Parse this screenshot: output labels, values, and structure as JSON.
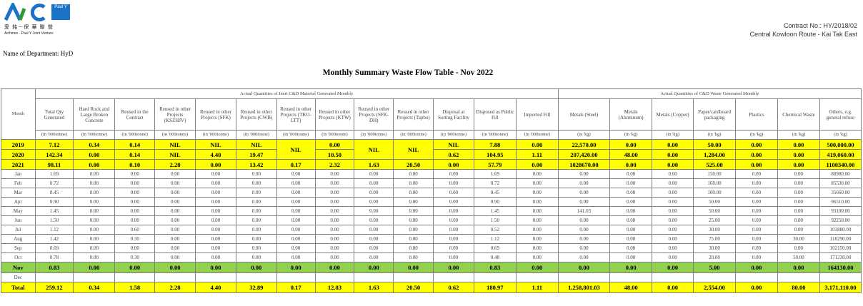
{
  "company": {
    "logo_text": "AIC",
    "partner_logo_text": "Paul Y",
    "cn_name": "愛 銘－保 華 聯 營",
    "en_name": "Aichmex - Paul Y Joint Venture"
  },
  "contract": {
    "number": "Contract No.: HY/2018/02",
    "project": "Central Kowloon Route - Kai Tak East"
  },
  "department": "Name of Department: HyD",
  "title": "Monthly Summary Waste Flow Table - Nov 2022",
  "table": {
    "group_inert": "Actual Quantities of Inert C&D Material Generated Monthly",
    "group_cd": "Actual Quantities of C&D Waste Generated Monthly",
    "month_header": "Month",
    "columns": [
      "Total Qty Generated",
      "Hard Rock and Large Broken Concrete",
      "Reused in the Contract",
      "Reused in other Projects (KSZHJV)",
      "Reused in other Projects (SFK)",
      "Reused in other Projects (CWB)",
      "Reused in other Projects (TKO-LTT)",
      "Reused in other Projects (KTW)",
      "Reused in other Projects (SFK-DH)",
      "Reused in other Projects (Tapbo)",
      "Disposal at Sorting Facility",
      "Disposed as Public Fill",
      "Imported Fill",
      "Metals (Steel)",
      "Metals (Aluminum)",
      "Metals (Copper)",
      "Paper/cardboard packaging",
      "Plastics",
      "Chemical Waste",
      "Others, e.g. general refuse"
    ],
    "units": [
      "(in '000tonne)",
      "(in '000tonne)",
      "(in '000tonne)",
      "(in '000tonne)",
      "(in '000tonne)",
      "(in '000tonne)",
      "(in '000tonne)",
      "(in '000tonne)",
      "(in '000tonne)",
      "(in '000tonne)",
      "(in '000tonne)",
      "(in '000tonne)",
      "(in '000tonne)",
      "(in 'kg)",
      "(in 'kg)",
      "(in 'kg)",
      "(in 'kg)",
      "(in 'kg)",
      "(in 'kg)",
      "(in 'kg)"
    ],
    "nil": "NIL",
    "years": {
      "y2019": {
        "label": "2019",
        "c1": "7.12",
        "c2": "0.34",
        "c3": "0.14",
        "c4": "NIL",
        "c5": "NIL",
        "c6": "NIL",
        "c8": "0.00",
        "c11": "NIL",
        "c12": "7.88",
        "c13": "0.00",
        "c14": "22,570.00",
        "c15": "0.00",
        "c16": "0.00",
        "c17": "50.00",
        "c18": "0.00",
        "c19": "0.00",
        "c20": "500,000.00"
      },
      "y2020": {
        "label": "2020",
        "c1": "142.34",
        "c2": "0.00",
        "c3": "0.14",
        "c4": "NIL",
        "c5": "4.40",
        "c6": "19.47",
        "c8": "10.50",
        "c11": "0.62",
        "c12": "104.95",
        "c13": "1.11",
        "c14": "207,420.00",
        "c15": "48.00",
        "c16": "0.00",
        "c17": "1,284.00",
        "c18": "0.00",
        "c19": "0.00",
        "c20": "419,060.00"
      },
      "y2021": {
        "label": "2021",
        "c1": "98.11",
        "c2": "0.00",
        "c3": "0.10",
        "c4": "2.28",
        "c5": "0.00",
        "c6": "13.42",
        "c7": "0.17",
        "c8": "2.32",
        "c9": "1.63",
        "c10": "20.50",
        "c11": "0.00",
        "c12": "57.79",
        "c13": "0.00",
        "c14": "1028670.00",
        "c15": "0.00",
        "c16": "0.00",
        "c17": "525.00",
        "c18": "0.00",
        "c19": "0.00",
        "c20": "1100340.00"
      }
    },
    "months": [
      {
        "label": "Jan",
        "c1": "1.69",
        "c2": "0.00",
        "c3": "0.00",
        "c4": "0.00",
        "c5": "0.00",
        "c6": "0.00",
        "c7": "0.00",
        "c8": "0.00",
        "c9": "0.00",
        "c10": "0.00",
        "c11": "0.00",
        "c12": "1.69",
        "c13": "0.00",
        "c14": "0.00",
        "c15": "0.00",
        "c16": "0.00",
        "c17": "150.00",
        "c18": "0.00",
        "c19": "0.00",
        "c20": "88980.00"
      },
      {
        "label": "Feb",
        "c1": "0.72",
        "c2": "0.00",
        "c3": "0.00",
        "c4": "0.00",
        "c5": "0.00",
        "c6": "0.00",
        "c7": "0.00",
        "c8": "0.00",
        "c9": "0.00",
        "c10": "0.00",
        "c11": "0.00",
        "c12": "0.72",
        "c13": "0.00",
        "c14": "0.00",
        "c15": "0.00",
        "c16": "0.00",
        "c17": "160.00",
        "c18": "0.00",
        "c19": "0.00",
        "c20": "85530.00"
      },
      {
        "label": "Mar",
        "c1": "0.45",
        "c2": "0.00",
        "c3": "0.00",
        "c4": "0.00",
        "c5": "0.00",
        "c6": "0.00",
        "c7": "0.00",
        "c8": "0.00",
        "c9": "0.00",
        "c10": "0.00",
        "c11": "0.00",
        "c12": "0.45",
        "c13": "0.00",
        "c14": "0.00",
        "c15": "0.00",
        "c16": "0.00",
        "c17": "100.00",
        "c18": "0.00",
        "c19": "0.00",
        "c20": "35660.00"
      },
      {
        "label": "Apr",
        "c1": "0.90",
        "c2": "0.00",
        "c3": "0.00",
        "c4": "0.00",
        "c5": "0.00",
        "c6": "0.00",
        "c7": "0.00",
        "c8": "0.00",
        "c9": "0.00",
        "c10": "0.00",
        "c11": "0.00",
        "c12": "0.90",
        "c13": "0.00",
        "c14": "0.00",
        "c15": "0.00",
        "c16": "0.00",
        "c17": "50.00",
        "c18": "0.00",
        "c19": "0.00",
        "c20": "96510.00"
      },
      {
        "label": "May",
        "c1": "1.45",
        "c2": "0.00",
        "c3": "0.00",
        "c4": "0.00",
        "c5": "0.00",
        "c6": "0.00",
        "c7": "0.00",
        "c8": "0.00",
        "c9": "0.00",
        "c10": "0.00",
        "c11": "0.00",
        "c12": "1.45",
        "c13": "0.00",
        "c14": "141.03",
        "c15": "0.00",
        "c16": "0.00",
        "c17": "50.00",
        "c18": "0.00",
        "c19": "0.00",
        "c20": "93100.00"
      },
      {
        "label": "Jun",
        "c1": "1.50",
        "c2": "0.00",
        "c3": "0.00",
        "c4": "0.00",
        "c5": "0.00",
        "c6": "0.00",
        "c7": "0.00",
        "c8": "0.00",
        "c9": "0.00",
        "c10": "0.00",
        "c11": "0.00",
        "c12": "1.50",
        "c13": "0.00",
        "c14": "0.00",
        "c15": "0.00",
        "c16": "0.00",
        "c17": "25.00",
        "c18": "0.00",
        "c19": "0.00",
        "c20": "92250.00"
      },
      {
        "label": "Jul",
        "c1": "1.12",
        "c2": "0.00",
        "c3": "0.60",
        "c4": "0.00",
        "c5": "0.00",
        "c6": "0.00",
        "c7": "0.00",
        "c8": "0.00",
        "c9": "0.00",
        "c10": "0.00",
        "c11": "0.00",
        "c12": "0.52",
        "c13": "0.00",
        "c14": "0.00",
        "c15": "0.00",
        "c16": "0.00",
        "c17": "30.00",
        "c18": "0.00",
        "c19": "0.00",
        "c20": "103880.00"
      },
      {
        "label": "Aug",
        "c1": "1.42",
        "c2": "0.00",
        "c3": "0.30",
        "c4": "0.00",
        "c5": "0.00",
        "c6": "0.00",
        "c7": "0.00",
        "c8": "0.00",
        "c9": "0.00",
        "c10": "0.00",
        "c11": "0.00",
        "c12": "1.12",
        "c13": "0.00",
        "c14": "0.00",
        "c15": "0.00",
        "c16": "0.00",
        "c17": "75.00",
        "c18": "0.00",
        "c19": "30.00",
        "c20": "118290.00"
      },
      {
        "label": "Sep",
        "c1": "0.69",
        "c2": "0.00",
        "c3": "0.00",
        "c4": "0.00",
        "c5": "0.00",
        "c6": "0.00",
        "c7": "0.00",
        "c8": "0.00",
        "c9": "0.00",
        "c10": "0.00",
        "c11": "0.00",
        "c12": "0.69",
        "c13": "0.00",
        "c14": "0.00",
        "c15": "0.00",
        "c16": "0.00",
        "c17": "30.00",
        "c18": "0.00",
        "c19": "0.00",
        "c20": "102150.00"
      },
      {
        "label": "Oct",
        "c1": "0.78",
        "c2": "0.00",
        "c3": "0.30",
        "c4": "0.00",
        "c5": "0.00",
        "c6": "0.00",
        "c7": "0.00",
        "c8": "0.00",
        "c9": "0.00",
        "c10": "0.00",
        "c11": "0.00",
        "c12": "0.48",
        "c13": "0.00",
        "c14": "0.00",
        "c15": "0.00",
        "c16": "0.00",
        "c17": "20.00",
        "c18": "0.00",
        "c19": "50.00",
        "c20": "171230.00"
      }
    ],
    "current": {
      "label": "Nov",
      "c1": "0.83",
      "c2": "0.00",
      "c3": "0.00",
      "c4": "0.00",
      "c5": "0.00",
      "c6": "0.00",
      "c7": "0.00",
      "c8": "0.00",
      "c9": "0.00",
      "c10": "0.00",
      "c11": "0.00",
      "c12": "0.83",
      "c13": "0.00",
      "c14": "0.00",
      "c15": "0.00",
      "c16": "0.00",
      "c17": "5.00",
      "c18": "0.00",
      "c19": "0.00",
      "c20": "164130.00"
    },
    "dec": {
      "label": "Dec"
    },
    "total": {
      "label": "Total",
      "c1": "259.12",
      "c2": "0.34",
      "c3": "1.58",
      "c4": "2.28",
      "c5": "4.40",
      "c6": "32.89",
      "c7": "0.17",
      "c8": "12.83",
      "c9": "1.63",
      "c10": "20.50",
      "c11": "0.62",
      "c12": "180.97",
      "c13": "1.11",
      "c14": "1,258,801.03",
      "c15": "48.00",
      "c16": "0.00",
      "c17": "2,554.00",
      "c18": "0.00",
      "c19": "80.00",
      "c20": "3,171,110.00"
    }
  }
}
